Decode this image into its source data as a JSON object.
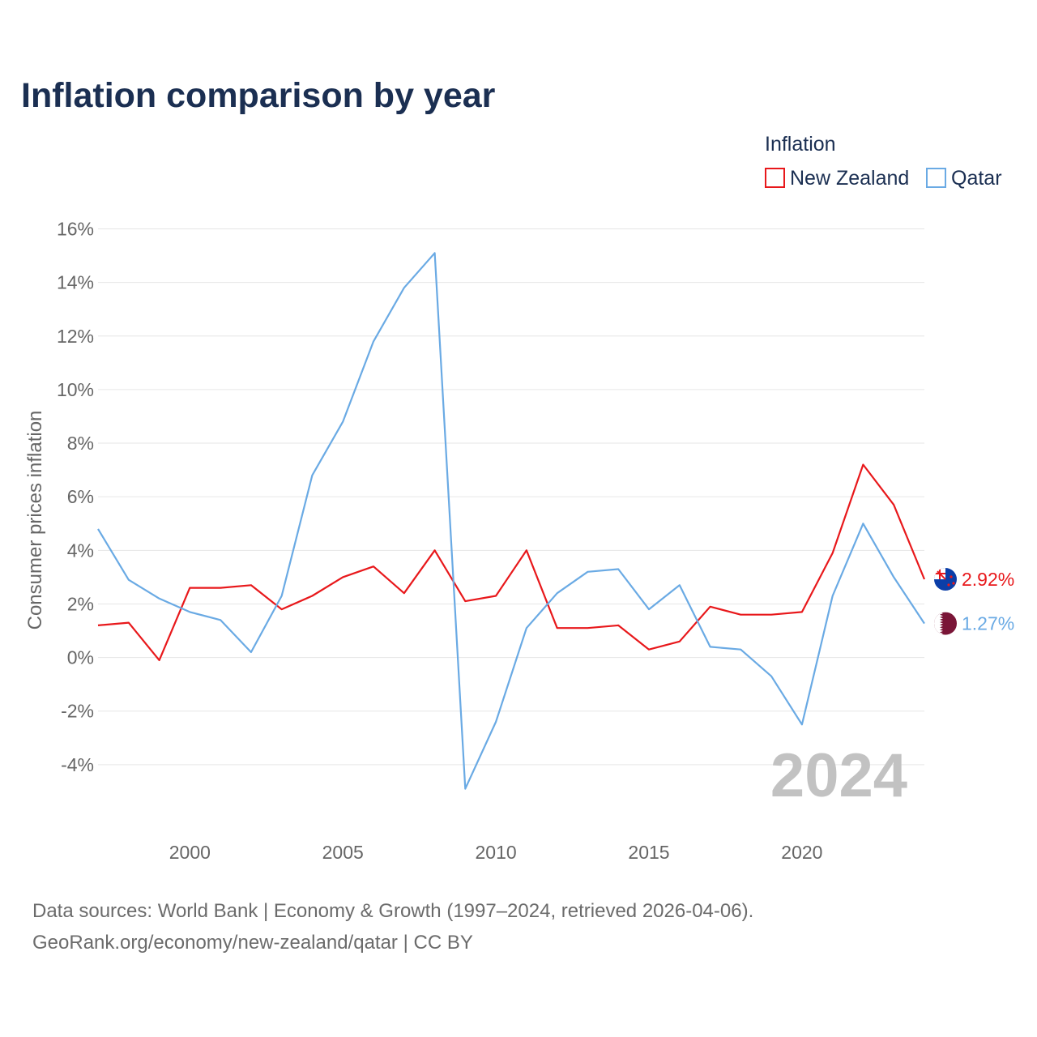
{
  "chart_data": {
    "type": "line",
    "title": "Inflation comparison by year",
    "legend_title": "Inflation",
    "legend_position": "top-right",
    "ylabel": "Consumer prices inflation",
    "xlabel": "",
    "x": [
      1997,
      1998,
      1999,
      2000,
      2001,
      2002,
      2003,
      2004,
      2005,
      2006,
      2007,
      2008,
      2009,
      2010,
      2011,
      2012,
      2013,
      2014,
      2015,
      2016,
      2017,
      2018,
      2019,
      2020,
      2021,
      2022,
      2023,
      2024
    ],
    "xlim": [
      1997,
      2024
    ],
    "x_ticks": [
      2000,
      2005,
      2010,
      2015,
      2020
    ],
    "x_tick_labels": [
      "2000",
      "2005",
      "2010",
      "2015",
      "2020"
    ],
    "ylim": [
      -6,
      16
    ],
    "y_ticks": [
      -4,
      -2,
      0,
      2,
      4,
      6,
      8,
      10,
      12,
      14,
      16
    ],
    "y_tick_labels": [
      "-4%",
      "-2%",
      "0%",
      "2%",
      "4%",
      "6%",
      "8%",
      "10%",
      "12%",
      "14%",
      "16%"
    ],
    "grid": true,
    "series": [
      {
        "name": "New Zealand",
        "color": "#e8181b",
        "flag_icon": "new-zealand-flag-icon",
        "end_label": "2.92%",
        "values": [
          1.2,
          1.3,
          -0.1,
          2.6,
          2.6,
          2.7,
          1.8,
          2.3,
          3.0,
          3.4,
          2.4,
          4.0,
          2.1,
          2.3,
          4.0,
          1.1,
          1.1,
          1.2,
          0.3,
          0.6,
          1.9,
          1.6,
          1.6,
          1.7,
          3.9,
          7.2,
          5.7,
          2.92
        ]
      },
      {
        "name": "Qatar",
        "color": "#6aaae4",
        "flag_icon": "qatar-flag-icon",
        "end_label": "1.27%",
        "values": [
          4.8,
          2.9,
          2.2,
          1.7,
          1.4,
          0.2,
          2.3,
          6.8,
          8.8,
          11.8,
          13.8,
          15.1,
          -4.9,
          -2.4,
          1.1,
          2.4,
          3.2,
          3.3,
          1.8,
          2.7,
          0.4,
          0.3,
          -0.7,
          -2.5,
          2.3,
          5.0,
          3.0,
          1.27
        ]
      }
    ],
    "watermark_year": "2024"
  },
  "footer": {
    "source_line": "Data sources: World Bank | Economy & Growth (1997–2024, retrieved 2026-04-06).",
    "url_line": "GeoRank.org/economy/new-zealand/qatar | CC BY"
  }
}
